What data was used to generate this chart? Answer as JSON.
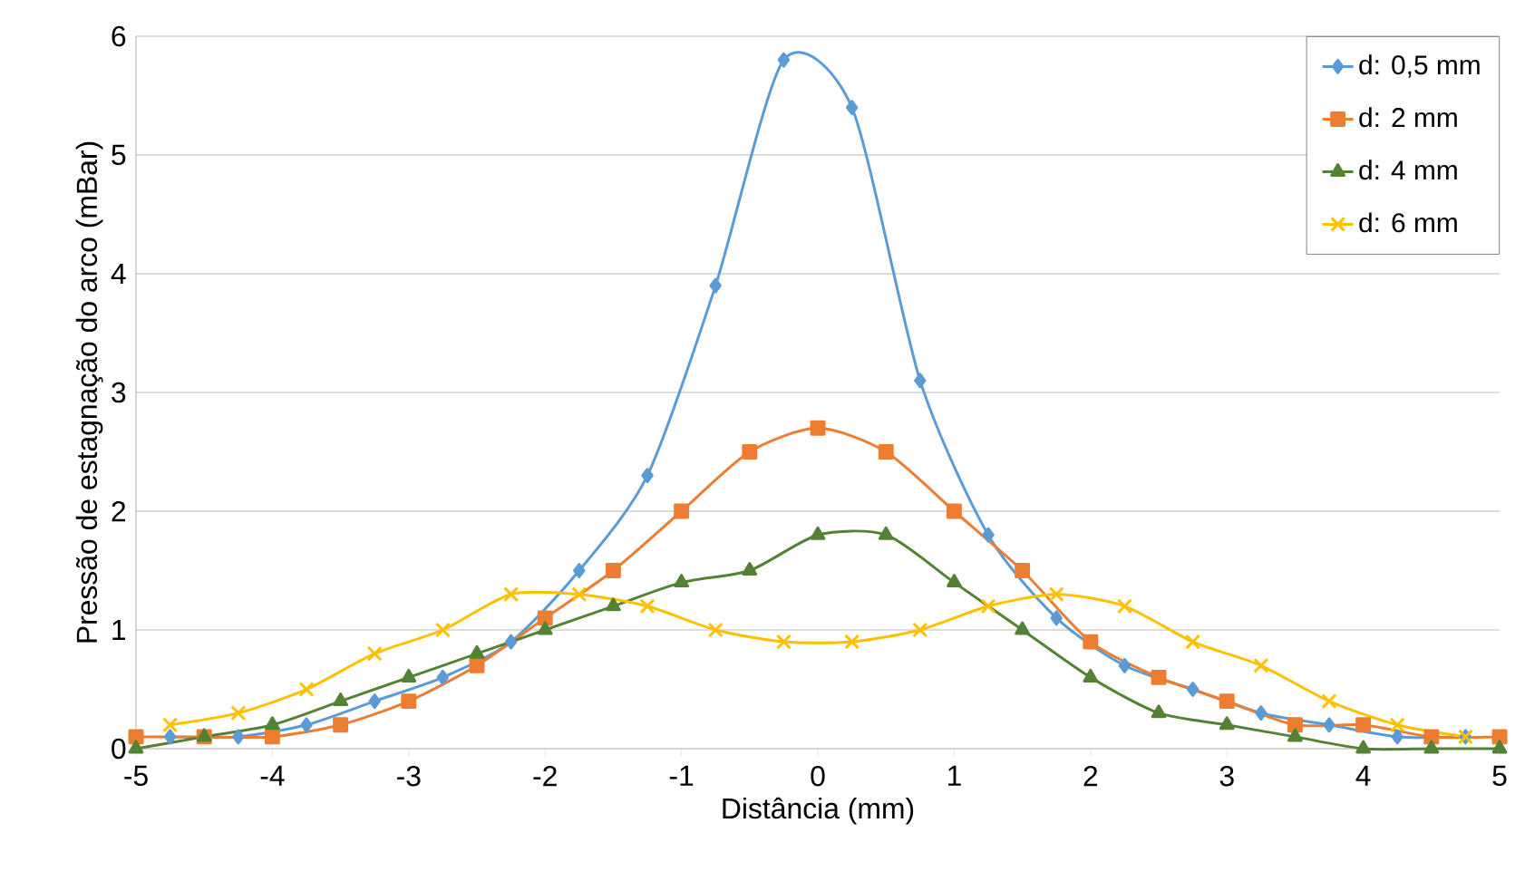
{
  "chart_data": {
    "type": "line",
    "xlabel": "Distância (mm)",
    "ylabel": "Pressão de estagnação do arco (mBar)",
    "xlim": [
      -5,
      5
    ],
    "xticks": [
      -5,
      -4,
      -3,
      -2,
      -1,
      0,
      1,
      2,
      3,
      4,
      5
    ],
    "ylim": [
      0,
      6
    ],
    "yticks": [
      0,
      1,
      2,
      3,
      4,
      5,
      6
    ],
    "grid": "y",
    "legend": "top right",
    "line_style": "solid",
    "series": [
      {
        "name": "d: 0,5 mm",
        "color": "#5b9bd5",
        "marker": "diamond",
        "x": [
          -4.75,
          -4.25,
          -3.75,
          -3.25,
          -2.75,
          -2.25,
          -1.75,
          -1.25,
          -0.75,
          -0.25,
          0.25,
          0.75,
          1.25,
          1.75,
          2.25,
          2.75,
          3.25,
          3.75,
          4.25,
          4.75
        ],
        "values": [
          0.1,
          0.1,
          0.2,
          0.4,
          0.6,
          0.9,
          1.5,
          2.3,
          3.9,
          5.8,
          5.4,
          3.1,
          1.8,
          1.1,
          0.7,
          0.5,
          0.3,
          0.2,
          0.1,
          0.1
        ]
      },
      {
        "name": "d: 2 mm",
        "color": "#ed7d31",
        "marker": "square",
        "x": [
          -5,
          -4.5,
          -4,
          -3.5,
          -3,
          -2.5,
          -2,
          -1.5,
          -1,
          -0.5,
          0,
          0.5,
          1,
          1.5,
          2,
          2.5,
          3,
          3.5,
          4,
          4.5,
          5
        ],
        "values": [
          0.1,
          0.1,
          0.1,
          0.2,
          0.4,
          0.7,
          1.1,
          1.5,
          2.0,
          2.5,
          2.7,
          2.5,
          2.0,
          1.5,
          0.9,
          0.6,
          0.4,
          0.2,
          0.2,
          0.1,
          0.1
        ]
      },
      {
        "name": "d: 4 mm",
        "color": "#548235",
        "marker": "triangle",
        "x": [
          -5,
          -4.5,
          -4,
          -3.5,
          -3,
          -2.5,
          -2,
          -1.5,
          -1,
          -0.5,
          0,
          0.5,
          1,
          1.5,
          2,
          2.5,
          3,
          3.5,
          4,
          4.5,
          5
        ],
        "values": [
          0,
          0.1,
          0.2,
          0.4,
          0.6,
          0.8,
          1.0,
          1.2,
          1.4,
          1.5,
          1.8,
          1.8,
          1.4,
          1.0,
          0.6,
          0.3,
          0.2,
          0.1,
          0,
          0,
          0
        ]
      },
      {
        "name": "d: 6 mm",
        "color": "#ffc000",
        "marker": "cross",
        "x": [
          -4.75,
          -4.25,
          -3.75,
          -3.25,
          -2.75,
          -2.25,
          -1.75,
          -1.25,
          -0.75,
          -0.25,
          0.25,
          0.75,
          1.25,
          1.75,
          2.25,
          2.75,
          3.25,
          3.75,
          4.25,
          4.75
        ],
        "values": [
          0.2,
          0.3,
          0.5,
          0.8,
          1.0,
          1.3,
          1.3,
          1.2,
          1.0,
          0.9,
          0.9,
          1.0,
          1.2,
          1.3,
          1.2,
          0.9,
          0.7,
          0.4,
          0.2,
          0.1
        ]
      }
    ]
  }
}
